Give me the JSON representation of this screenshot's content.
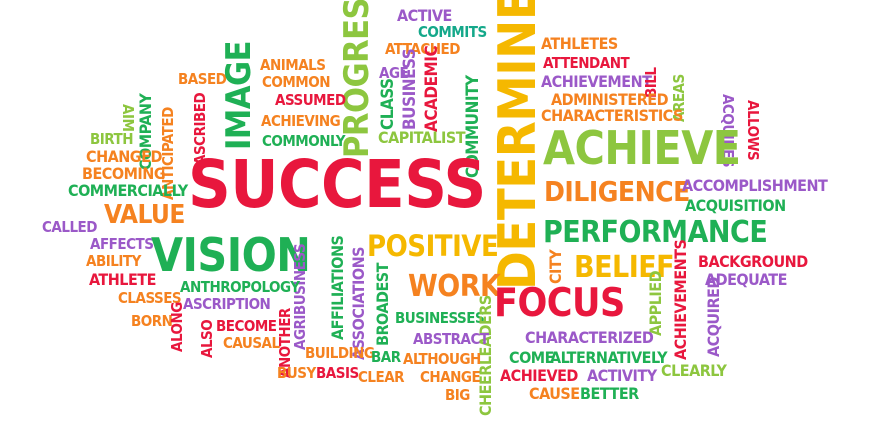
{
  "colors": {
    "red": "#e8173d",
    "green": "#1fb055",
    "lime": "#8dc63f",
    "orange": "#f58220",
    "yellow": "#f5b800",
    "purple": "#9b59c8",
    "teal": "#14a88a",
    "darkred": "#c8102e"
  },
  "words": [
    {
      "text": "ACTIVE",
      "color": "purple"
    },
    {
      "text": "COMMITS",
      "color": "teal"
    },
    {
      "text": "ATHLETES",
      "color": "orange"
    },
    {
      "text": "PROGRESS",
      "color": "lime"
    },
    {
      "text": "ATTACHED",
      "color": "orange"
    },
    {
      "text": "DETERMINED",
      "color": "yellow"
    },
    {
      "text": "ATTENDANT",
      "color": "red"
    },
    {
      "text": "ANIMALS",
      "color": "orange"
    },
    {
      "text": "AGE",
      "color": "purple"
    },
    {
      "text": "ACHIEVEMENT",
      "color": "purple"
    },
    {
      "text": "BASED",
      "color": "orange"
    },
    {
      "text": "COMMON",
      "color": "orange"
    },
    {
      "text": "IMAGE",
      "color": "green"
    },
    {
      "text": "CLASS",
      "color": "green"
    },
    {
      "text": "BUSINESS",
      "color": "purple"
    },
    {
      "text": "ACADEMIC",
      "color": "red"
    },
    {
      "text": "BILL",
      "color": "red"
    },
    {
      "text": "ASSUMED",
      "color": "red"
    },
    {
      "text": "ADMINISTERED",
      "color": "orange"
    },
    {
      "text": "AREAS",
      "color": "lime"
    },
    {
      "text": "AIM",
      "color": "lime"
    },
    {
      "text": "ACHIEVING",
      "color": "orange"
    },
    {
      "text": "CHARACTERISTICS",
      "color": "orange"
    },
    {
      "text": "ASCRIBED",
      "color": "red"
    },
    {
      "text": "COMPANY",
      "color": "green"
    },
    {
      "text": "COMMUNITY",
      "color": "green"
    },
    {
      "text": "ACQUIRES",
      "color": "purple"
    },
    {
      "text": "ALLOWS",
      "color": "red"
    },
    {
      "text": "BIRTH",
      "color": "lime"
    },
    {
      "text": "COMMONLY",
      "color": "green"
    },
    {
      "text": "CAPITALIST",
      "color": "lime"
    },
    {
      "text": "ACHIEVE",
      "color": "lime"
    },
    {
      "text": "CHANGED",
      "color": "orange"
    },
    {
      "text": "ANTICIPATED",
      "color": "orange"
    },
    {
      "text": "BECOMING",
      "color": "orange"
    },
    {
      "text": "SUCCESS",
      "color": "red"
    },
    {
      "text": "COMMERCIALLY",
      "color": "green"
    },
    {
      "text": "DILIGENCE",
      "color": "orange"
    },
    {
      "text": "ACCOMPLISHMENT",
      "color": "purple"
    },
    {
      "text": "VALUE",
      "color": "orange"
    },
    {
      "text": "ACQUISITION",
      "color": "green"
    },
    {
      "text": "CALLED",
      "color": "purple"
    },
    {
      "text": "PERFORMANCE",
      "color": "green"
    },
    {
      "text": "AFFECTS",
      "color": "purple"
    },
    {
      "text": "VISION",
      "color": "green"
    },
    {
      "text": "POSITIVE",
      "color": "yellow"
    },
    {
      "text": "BACKGROUND",
      "color": "red"
    },
    {
      "text": "ABILITY",
      "color": "orange"
    },
    {
      "text": "BELIEF",
      "color": "yellow"
    },
    {
      "text": "CITY",
      "color": "orange"
    },
    {
      "text": "ADEQUATE",
      "color": "purple"
    },
    {
      "text": "ATHLETE",
      "color": "red"
    },
    {
      "text": "AFFILIATIONS",
      "color": "green"
    },
    {
      "text": "AGRIBUSINESS",
      "color": "purple"
    },
    {
      "text": "ANTHROPOLOGY",
      "color": "green"
    },
    {
      "text": "WORK",
      "color": "orange"
    },
    {
      "text": "CLASSES",
      "color": "orange"
    },
    {
      "text": "ASCRIPTION",
      "color": "purple"
    },
    {
      "text": "ASSOCIATIONS",
      "color": "purple"
    },
    {
      "text": "BROADEST",
      "color": "green"
    },
    {
      "text": "FOCUS",
      "color": "red"
    },
    {
      "text": "APPLIED",
      "color": "lime"
    },
    {
      "text": "ACHIEVEMENTS",
      "color": "red"
    },
    {
      "text": "ACQUIRED",
      "color": "purple"
    },
    {
      "text": "BORN",
      "color": "orange"
    },
    {
      "text": "BECOME",
      "color": "red"
    },
    {
      "text": "BUSINESSES",
      "color": "green"
    },
    {
      "text": "CHEERLEADERS",
      "color": "lime"
    },
    {
      "text": "ALONG",
      "color": "red"
    },
    {
      "text": "ALSO",
      "color": "red"
    },
    {
      "text": "CAUSAL",
      "color": "orange"
    },
    {
      "text": "ANOTHER",
      "color": "red"
    },
    {
      "text": "CHARACTERIZED",
      "color": "purple"
    },
    {
      "text": "ABSTRACT",
      "color": "purple"
    },
    {
      "text": "BUILDING",
      "color": "orange"
    },
    {
      "text": "BAR",
      "color": "green"
    },
    {
      "text": "COME",
      "color": "green"
    },
    {
      "text": "ALTERNATIVELY",
      "color": "green"
    },
    {
      "text": "ALTHOUGH",
      "color": "orange"
    },
    {
      "text": "BUSY",
      "color": "orange"
    },
    {
      "text": "BASIS",
      "color": "red"
    },
    {
      "text": "CLEAR",
      "color": "orange"
    },
    {
      "text": "CHANGE",
      "color": "orange"
    },
    {
      "text": "ACHIEVED",
      "color": "red"
    },
    {
      "text": "ACTIVITY",
      "color": "purple"
    },
    {
      "text": "CLEARLY",
      "color": "lime"
    },
    {
      "text": "BIG",
      "color": "orange"
    },
    {
      "text": "CAUSE",
      "color": "orange"
    },
    {
      "text": "BETTER",
      "color": "green"
    }
  ]
}
